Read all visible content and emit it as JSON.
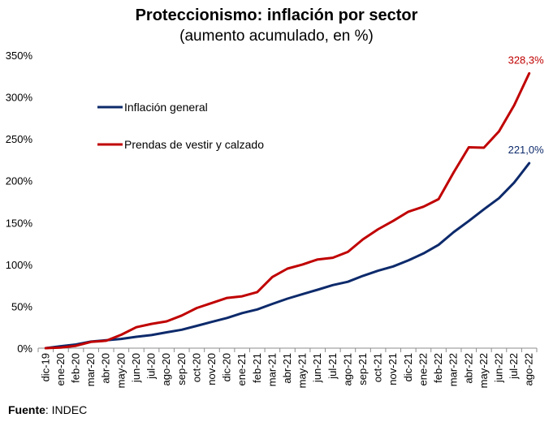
{
  "chart_data": {
    "type": "line",
    "title": "Proteccionismo: inflación por sector",
    "subtitle": "(aumento acumulado, en %)",
    "xlabel": "",
    "ylabel": "",
    "ylim": [
      0,
      350
    ],
    "y_ticks": [
      "0%",
      "50%",
      "100%",
      "150%",
      "200%",
      "250%",
      "300%",
      "350%"
    ],
    "grid": false,
    "legend_position": "upper-left",
    "categories": [
      "dic-19",
      "ene-20",
      "feb-20",
      "mar-20",
      "abr-20",
      "may-20",
      "jun-20",
      "jul-20",
      "ago-20",
      "sep-20",
      "oct-20",
      "nov-20",
      "dic-20",
      "ene-21",
      "feb-21",
      "mar-21",
      "abr-21",
      "may-21",
      "jun-21",
      "jul-21",
      "ago-21",
      "sep-21",
      "oct-21",
      "nov-21",
      "dic-21",
      "ene-22",
      "feb-22",
      "mar-22",
      "abr-22",
      "may-22",
      "jun-22",
      "jul-22",
      "ago-22"
    ],
    "series": [
      {
        "name": "Inflación general",
        "color": "#0d2a6b",
        "values": [
          0,
          2.3,
          4.4,
          7.9,
          9.5,
          11.1,
          13.6,
          15.6,
          18.9,
          22.0,
          26.7,
          31.4,
          36.1,
          41.9,
          46.2,
          52.8,
          59.1,
          64.6,
          69.8,
          75.3,
          79.3,
          86.4,
          92.5,
          97.6,
          104.8,
          113.1,
          123.4,
          138.6,
          151.9,
          165.9,
          179.2,
          197.7,
          221.0
        ],
        "end_label": "221,0%"
      },
      {
        "name": "Prendas de vestir y calzado",
        "color": "#c00000",
        "values": [
          0,
          0.8,
          2.8,
          7.5,
          8.8,
          16.0,
          25.0,
          29.0,
          32.0,
          39.0,
          48.0,
          54.0,
          60.0,
          62.0,
          67.0,
          85.0,
          95.0,
          100.0,
          106.0,
          108.0,
          115.0,
          130.0,
          142.0,
          152.0,
          163.0,
          169.0,
          178.0,
          210.0,
          240.0,
          239.5,
          259.0,
          290.0,
          328.3
        ],
        "end_label": "328,3%"
      }
    ]
  },
  "footer": {
    "source_label": "Fuente",
    "source_value": ": INDEC"
  }
}
